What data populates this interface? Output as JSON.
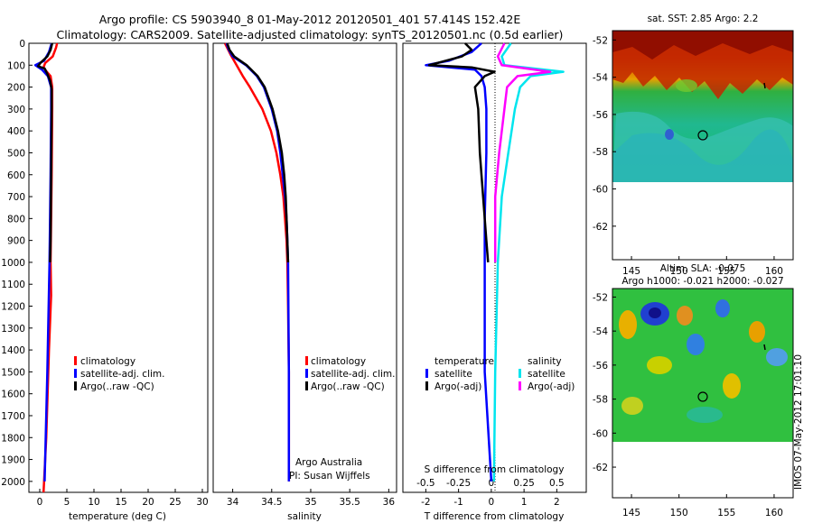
{
  "title_line1": "Argo profile: CS 5903940_8 01-May-2012 20120501_401 57.414S 152.42E",
  "title_line2": "Climatology: CARS2009. Satellite-adjusted climatology: synTS_20120501.nc (0.5d earlier)",
  "colors": {
    "climatology": "#ff0000",
    "satellite": "#0000ff",
    "argo": "#000000",
    "sal_satellite": "#00e5ee",
    "sal_argo": "#ff00ff"
  },
  "y_ticks": [
    0,
    100,
    200,
    300,
    400,
    500,
    600,
    700,
    800,
    900,
    1000,
    1100,
    1200,
    1300,
    1400,
    1500,
    1600,
    1700,
    1800,
    1900,
    2000
  ],
  "panel_temp": {
    "xlabel": "temperature (deg C)",
    "xticks": [
      {
        "v": 0,
        "label": "0"
      },
      {
        "v": 5,
        "label": "5"
      },
      {
        "v": 10,
        "label": "10"
      },
      {
        "v": 15,
        "label": "15"
      },
      {
        "v": 20,
        "label": "20"
      },
      {
        "v": 25,
        "label": "25"
      },
      {
        "v": 30,
        "label": "30"
      }
    ],
    "xlim": [
      -2,
      31
    ],
    "legend": [
      "climatology",
      "satellite-adj. clim.",
      "Argo(..raw -QC)"
    ]
  },
  "panel_sal": {
    "xlabel": "salinity",
    "xticks": [
      {
        "v": 34,
        "label": "34"
      },
      {
        "v": 34.5,
        "label": "34.5"
      },
      {
        "v": 35,
        "label": "35"
      },
      {
        "v": 35.5,
        "label": "35.5"
      },
      {
        "v": 36,
        "label": "36"
      }
    ],
    "xlim": [
      33.75,
      36.1
    ],
    "legend": [
      "climatology",
      "satellite-adj. clim.",
      "Argo(..raw -QC)"
    ],
    "note1": "Argo Australia",
    "note2": "PI: Susan Wijffels"
  },
  "panel_diff": {
    "xlabel": "T difference from climatology",
    "xlabel_top": "S difference from climatology",
    "xticks_t": [
      {
        "v": -2,
        "label": "-2"
      },
      {
        "v": -1,
        "label": "-1"
      },
      {
        "v": 0,
        "label": "0"
      },
      {
        "v": 1,
        "label": "1"
      },
      {
        "v": 2,
        "label": "2"
      }
    ],
    "xticks_s": [
      {
        "v": -0.5,
        "label": "-0.5"
      },
      {
        "v": -0.25,
        "label": "-0.25"
      },
      {
        "v": 0,
        "label": "0"
      },
      {
        "v": 0.25,
        "label": "0.25"
      },
      {
        "v": 0.5,
        "label": "0.5"
      }
    ],
    "xlim": [
      -2.7,
      2.9
    ],
    "legend_t_title": "temperature",
    "legend_s_title": "salinity",
    "legend_t": [
      "satellite",
      "Argo(-adj)"
    ],
    "legend_s": [
      "satellite",
      "Argo(-adj)"
    ]
  },
  "map1": {
    "title": "sat. SST: 2.85 Argo: 2.2",
    "yticks": [
      -52,
      -54,
      -56,
      -58,
      -60,
      -62
    ],
    "xticks": [
      145,
      150,
      155,
      160
    ],
    "ylim": [
      -51.5,
      -63.8
    ],
    "xlim": [
      143,
      162
    ]
  },
  "map2": {
    "title1": "Altim. SLA: -0.075",
    "title2": "Argo h1000: -0.021 h2000: -0.027",
    "yticks": [
      -52,
      -54,
      -56,
      -58,
      -60,
      -62
    ],
    "xticks": [
      145,
      150,
      155,
      160
    ],
    "ylim": [
      -51.5,
      -63.8
    ],
    "xlim": [
      143,
      162
    ]
  },
  "watermark": "IMOS 07-May-2012 17:01:10",
  "chart_data": [
    {
      "type": "line",
      "panel": "temperature",
      "xlabel": "temperature (deg C)",
      "ylabel": "",
      "xlim": [
        -2,
        31
      ],
      "ylim": [
        2050,
        0
      ],
      "series": [
        {
          "name": "climatology",
          "depth": [
            0,
            20,
            60,
            90,
            110,
            130,
            150,
            200,
            300,
            600,
            1000,
            1150,
            1400,
            1800,
            2000,
            2050
          ],
          "values": [
            3.2,
            3.0,
            2.4,
            1.0,
            0.7,
            1.3,
            2.0,
            2.3,
            2.3,
            2.2,
            2.0,
            2.1,
            1.7,
            1.2,
            0.8,
            0.7
          ]
        },
        {
          "name": "satellite-adj. clim.",
          "depth": [
            0,
            40,
            80,
            100,
            120,
            150,
            200,
            300,
            600,
            1000,
            1500,
            2000
          ],
          "values": [
            2.2,
            1.7,
            0.8,
            -0.8,
            0.4,
            1.5,
            2.1,
            2.1,
            2.0,
            1.8,
            1.4,
            0.9
          ]
        },
        {
          "name": "Argo(..raw -QC)",
          "depth": [
            0,
            30,
            60,
            90,
            105,
            115,
            140,
            170,
            210,
            300,
            600,
            900,
            1000
          ],
          "values": [
            2.3,
            2.0,
            1.4,
            0.1,
            -0.3,
            0.9,
            1.4,
            1.9,
            2.2,
            2.2,
            2.1,
            2.0,
            1.9
          ]
        }
      ]
    },
    {
      "type": "line",
      "panel": "salinity",
      "xlabel": "salinity",
      "ylabel": "",
      "xlim": [
        33.75,
        36.1
      ],
      "ylim": [
        2050,
        0
      ],
      "series": [
        {
          "name": "climatology",
          "depth": [
            0,
            50,
            100,
            150,
            200,
            300,
            400,
            500,
            600,
            700,
            800,
            900,
            1000,
            1200,
            1500,
            2000
          ],
          "values": [
            33.9,
            33.97,
            34.05,
            34.13,
            34.22,
            34.38,
            34.49,
            34.56,
            34.61,
            34.65,
            34.67,
            34.69,
            34.7,
            34.71,
            34.72,
            34.72
          ]
        },
        {
          "name": "satellite-adj. clim.",
          "depth": [
            0,
            30,
            60,
            100,
            150,
            200,
            300,
            400,
            500,
            600,
            700,
            800,
            900,
            1000,
            1500,
            2000
          ],
          "values": [
            33.92,
            33.95,
            34.0,
            34.17,
            34.31,
            34.4,
            34.5,
            34.57,
            34.61,
            34.64,
            34.67,
            34.69,
            34.7,
            34.71,
            34.72,
            34.72
          ]
        },
        {
          "name": "Argo(..raw -QC)",
          "depth": [
            0,
            30,
            60,
            100,
            150,
            200,
            300,
            400,
            500,
            600,
            700,
            800,
            900,
            1000
          ],
          "values": [
            33.93,
            33.96,
            34.02,
            34.18,
            34.32,
            34.41,
            34.51,
            34.58,
            34.63,
            34.66,
            34.68,
            34.69,
            34.7,
            34.71
          ]
        }
      ]
    },
    {
      "type": "line",
      "panel": "difference",
      "xlabel": "T difference from climatology",
      "xlim": [
        -2.7,
        2.9
      ],
      "ylim": [
        2050,
        0
      ],
      "series": [
        {
          "name": "temperature satellite",
          "depth": [
            0,
            40,
            80,
            100,
            120,
            150,
            200,
            300,
            500,
            800,
            1000,
            1500,
            2000
          ],
          "values": [
            -0.3,
            -0.6,
            -1.3,
            -2.0,
            -0.5,
            -0.3,
            -0.2,
            -0.15,
            -0.15,
            -0.2,
            -0.2,
            -0.2,
            0.0
          ]
        },
        {
          "name": "temperature Argo(-adj)",
          "depth": [
            0,
            30,
            60,
            100,
            110,
            130,
            150,
            200,
            300,
            500,
            700,
            900,
            1000
          ],
          "values": [
            -0.8,
            -0.6,
            -0.9,
            -1.9,
            -0.6,
            0.1,
            -0.2,
            -0.5,
            -0.4,
            -0.35,
            -0.25,
            -0.15,
            -0.1
          ]
        },
        {
          "name": "salinity satellite",
          "depth": [
            0,
            60,
            100,
            130,
            150,
            200,
            300,
            500,
            700,
            1000,
            1500,
            2000
          ],
          "values": [
            0.15,
            0.08,
            0.1,
            0.55,
            0.3,
            0.22,
            0.18,
            0.13,
            0.08,
            0.05,
            0.03,
            0.02
          ]
        },
        {
          "name": "salinity Argo(-adj)",
          "depth": [
            0,
            60,
            100,
            130,
            150,
            200,
            300,
            500,
            700,
            1000
          ],
          "values": [
            0.1,
            0.05,
            0.08,
            0.45,
            0.2,
            0.12,
            0.1,
            0.06,
            0.03,
            0.03
          ]
        }
      ]
    }
  ]
}
